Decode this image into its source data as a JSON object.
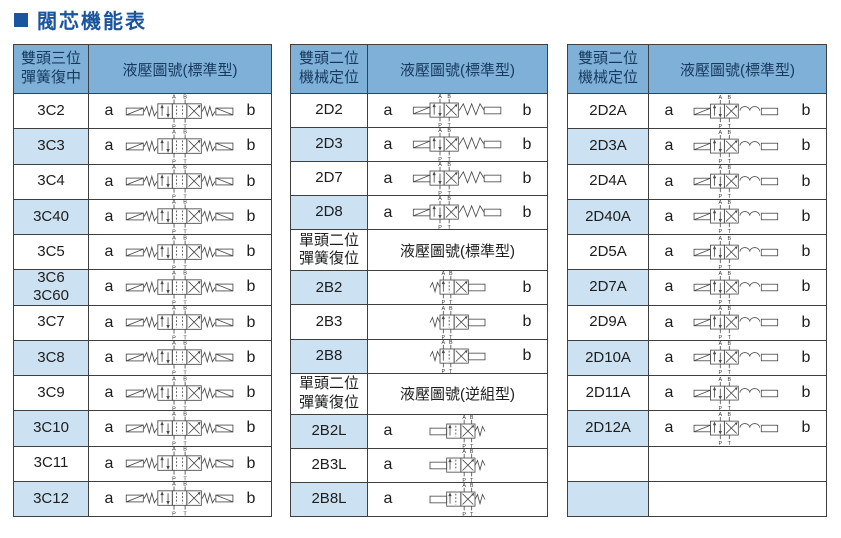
{
  "title": {
    "text": "閥芯機能表"
  },
  "colors": {
    "header_bg": "#7FB1D8",
    "alt_row_bg": "#CCE2F2",
    "border": "#3F3F3F",
    "header_text": "#17395E",
    "title": "#1B55A0"
  },
  "ports": {
    "a": "A",
    "b": "B",
    "p": "P",
    "t": "T"
  },
  "side_labels": {
    "a": "a",
    "b": "b"
  },
  "tables": [
    {
      "name": "double-head-three-position",
      "header": {
        "left": "雙頭三位\n彈簧復中",
        "right": "液壓圖號(標準型)"
      },
      "rows": [
        {
          "kind": "data",
          "code": "3C2",
          "a": "a",
          "b": "b",
          "symbol": "valve-3pos-spring-centered",
          "alt": false
        },
        {
          "kind": "data",
          "code": "3C3",
          "a": "a",
          "b": "b",
          "symbol": "valve-3pos-spring-centered",
          "alt": true
        },
        {
          "kind": "data",
          "code": "3C4",
          "a": "a",
          "b": "b",
          "symbol": "valve-3pos-spring-centered",
          "alt": false
        },
        {
          "kind": "data",
          "code": "3C40",
          "a": "a",
          "b": "b",
          "symbol": "valve-3pos-spring-centered",
          "alt": true
        },
        {
          "kind": "data",
          "code": "3C5",
          "a": "a",
          "b": "b",
          "symbol": "valve-3pos-spring-centered",
          "alt": false
        },
        {
          "kind": "data",
          "code": "3C6\n3C60",
          "a": "a",
          "b": "b",
          "symbol": "valve-3pos-spring-centered",
          "alt": true
        },
        {
          "kind": "data",
          "code": "3C7",
          "a": "a",
          "b": "b",
          "symbol": "valve-3pos-spring-centered",
          "alt": false
        },
        {
          "kind": "data",
          "code": "3C8",
          "a": "a",
          "b": "b",
          "symbol": "valve-3pos-spring-centered",
          "alt": true
        },
        {
          "kind": "data",
          "code": "3C9",
          "a": "a",
          "b": "b",
          "symbol": "valve-3pos-spring-centered",
          "alt": false
        },
        {
          "kind": "data",
          "code": "3C10",
          "a": "a",
          "b": "b",
          "symbol": "valve-3pos-spring-centered",
          "alt": true
        },
        {
          "kind": "data",
          "code": "3C11",
          "a": "a",
          "b": "b",
          "symbol": "valve-3pos-spring-centered",
          "alt": false
        },
        {
          "kind": "data",
          "code": "3C12",
          "a": "a",
          "b": "b",
          "symbol": "valve-3pos-spring-centered",
          "alt": true
        }
      ]
    },
    {
      "name": "double-head-two-position",
      "header": {
        "left": "雙頭二位\n機械定位",
        "right": "液壓圖號(標準型)"
      },
      "rows": [
        {
          "kind": "data",
          "code": "2D2",
          "a": "a",
          "b": "b",
          "symbol": "valve-2pos-double-solenoid",
          "alt": false
        },
        {
          "kind": "data",
          "code": "2D3",
          "a": "a",
          "b": "b",
          "symbol": "valve-2pos-double-solenoid",
          "alt": true
        },
        {
          "kind": "data",
          "code": "2D7",
          "a": "a",
          "b": "b",
          "symbol": "valve-2pos-double-solenoid",
          "alt": false
        },
        {
          "kind": "data",
          "code": "2D8",
          "a": "a",
          "b": "b",
          "symbol": "valve-2pos-double-solenoid",
          "alt": true
        },
        {
          "kind": "subheader",
          "left": "單頭二位\n彈簧復位",
          "right": "液壓圖號(標準型)"
        },
        {
          "kind": "data",
          "code": "2B2",
          "a": "",
          "b": "b",
          "symbol": "valve-2pos-spring-return-right",
          "alt": true
        },
        {
          "kind": "data",
          "code": "2B3",
          "a": "",
          "b": "b",
          "symbol": "valve-2pos-spring-return-right",
          "alt": false
        },
        {
          "kind": "data",
          "code": "2B8",
          "a": "",
          "b": "b",
          "symbol": "valve-2pos-spring-return-right",
          "alt": true
        },
        {
          "kind": "subheader",
          "left": "單頭二位\n彈簧復位",
          "right": "液壓圖號(逆組型)"
        },
        {
          "kind": "data",
          "code": "2B2L",
          "a": "a",
          "b": "",
          "symbol": "valve-2pos-spring-return-left",
          "alt": true
        },
        {
          "kind": "data",
          "code": "2B3L",
          "a": "a",
          "b": "",
          "symbol": "valve-2pos-spring-return-left",
          "alt": false
        },
        {
          "kind": "data",
          "code": "2B8L",
          "a": "a",
          "b": "",
          "symbol": "valve-2pos-spring-return-left",
          "alt": true
        }
      ]
    },
    {
      "name": "double-head-two-position-detent",
      "header": {
        "left": "雙頭二位\n機械定位",
        "right": "液壓圖號(標準型)"
      },
      "rows": [
        {
          "kind": "data",
          "code": "2D2A",
          "a": "a",
          "b": "b",
          "symbol": "valve-2pos-double-solenoid-detent",
          "alt": false
        },
        {
          "kind": "data",
          "code": "2D3A",
          "a": "a",
          "b": "b",
          "symbol": "valve-2pos-double-solenoid-detent",
          "alt": true
        },
        {
          "kind": "data",
          "code": "2D4A",
          "a": "a",
          "b": "b",
          "symbol": "valve-2pos-double-solenoid-detent",
          "alt": false
        },
        {
          "kind": "data",
          "code": "2D40A",
          "a": "a",
          "b": "b",
          "symbol": "valve-2pos-double-solenoid-detent",
          "alt": true
        },
        {
          "kind": "data",
          "code": "2D5A",
          "a": "a",
          "b": "b",
          "symbol": "valve-2pos-double-solenoid-detent",
          "alt": false
        },
        {
          "kind": "data",
          "code": "2D7A",
          "a": "a",
          "b": "b",
          "symbol": "valve-2pos-double-solenoid-detent",
          "alt": true
        },
        {
          "kind": "data",
          "code": "2D9A",
          "a": "a",
          "b": "b",
          "symbol": "valve-2pos-double-solenoid-detent",
          "alt": false
        },
        {
          "kind": "data",
          "code": "2D10A",
          "a": "a",
          "b": "b",
          "symbol": "valve-2pos-double-solenoid-detent",
          "alt": true
        },
        {
          "kind": "data",
          "code": "2D11A",
          "a": "a",
          "b": "b",
          "symbol": "valve-2pos-double-solenoid-detent",
          "alt": false
        },
        {
          "kind": "data",
          "code": "2D12A",
          "a": "a",
          "b": "b",
          "symbol": "valve-2pos-double-solenoid-detent",
          "alt": true
        },
        {
          "kind": "empty",
          "alt": false
        },
        {
          "kind": "empty",
          "alt": true
        }
      ]
    }
  ]
}
